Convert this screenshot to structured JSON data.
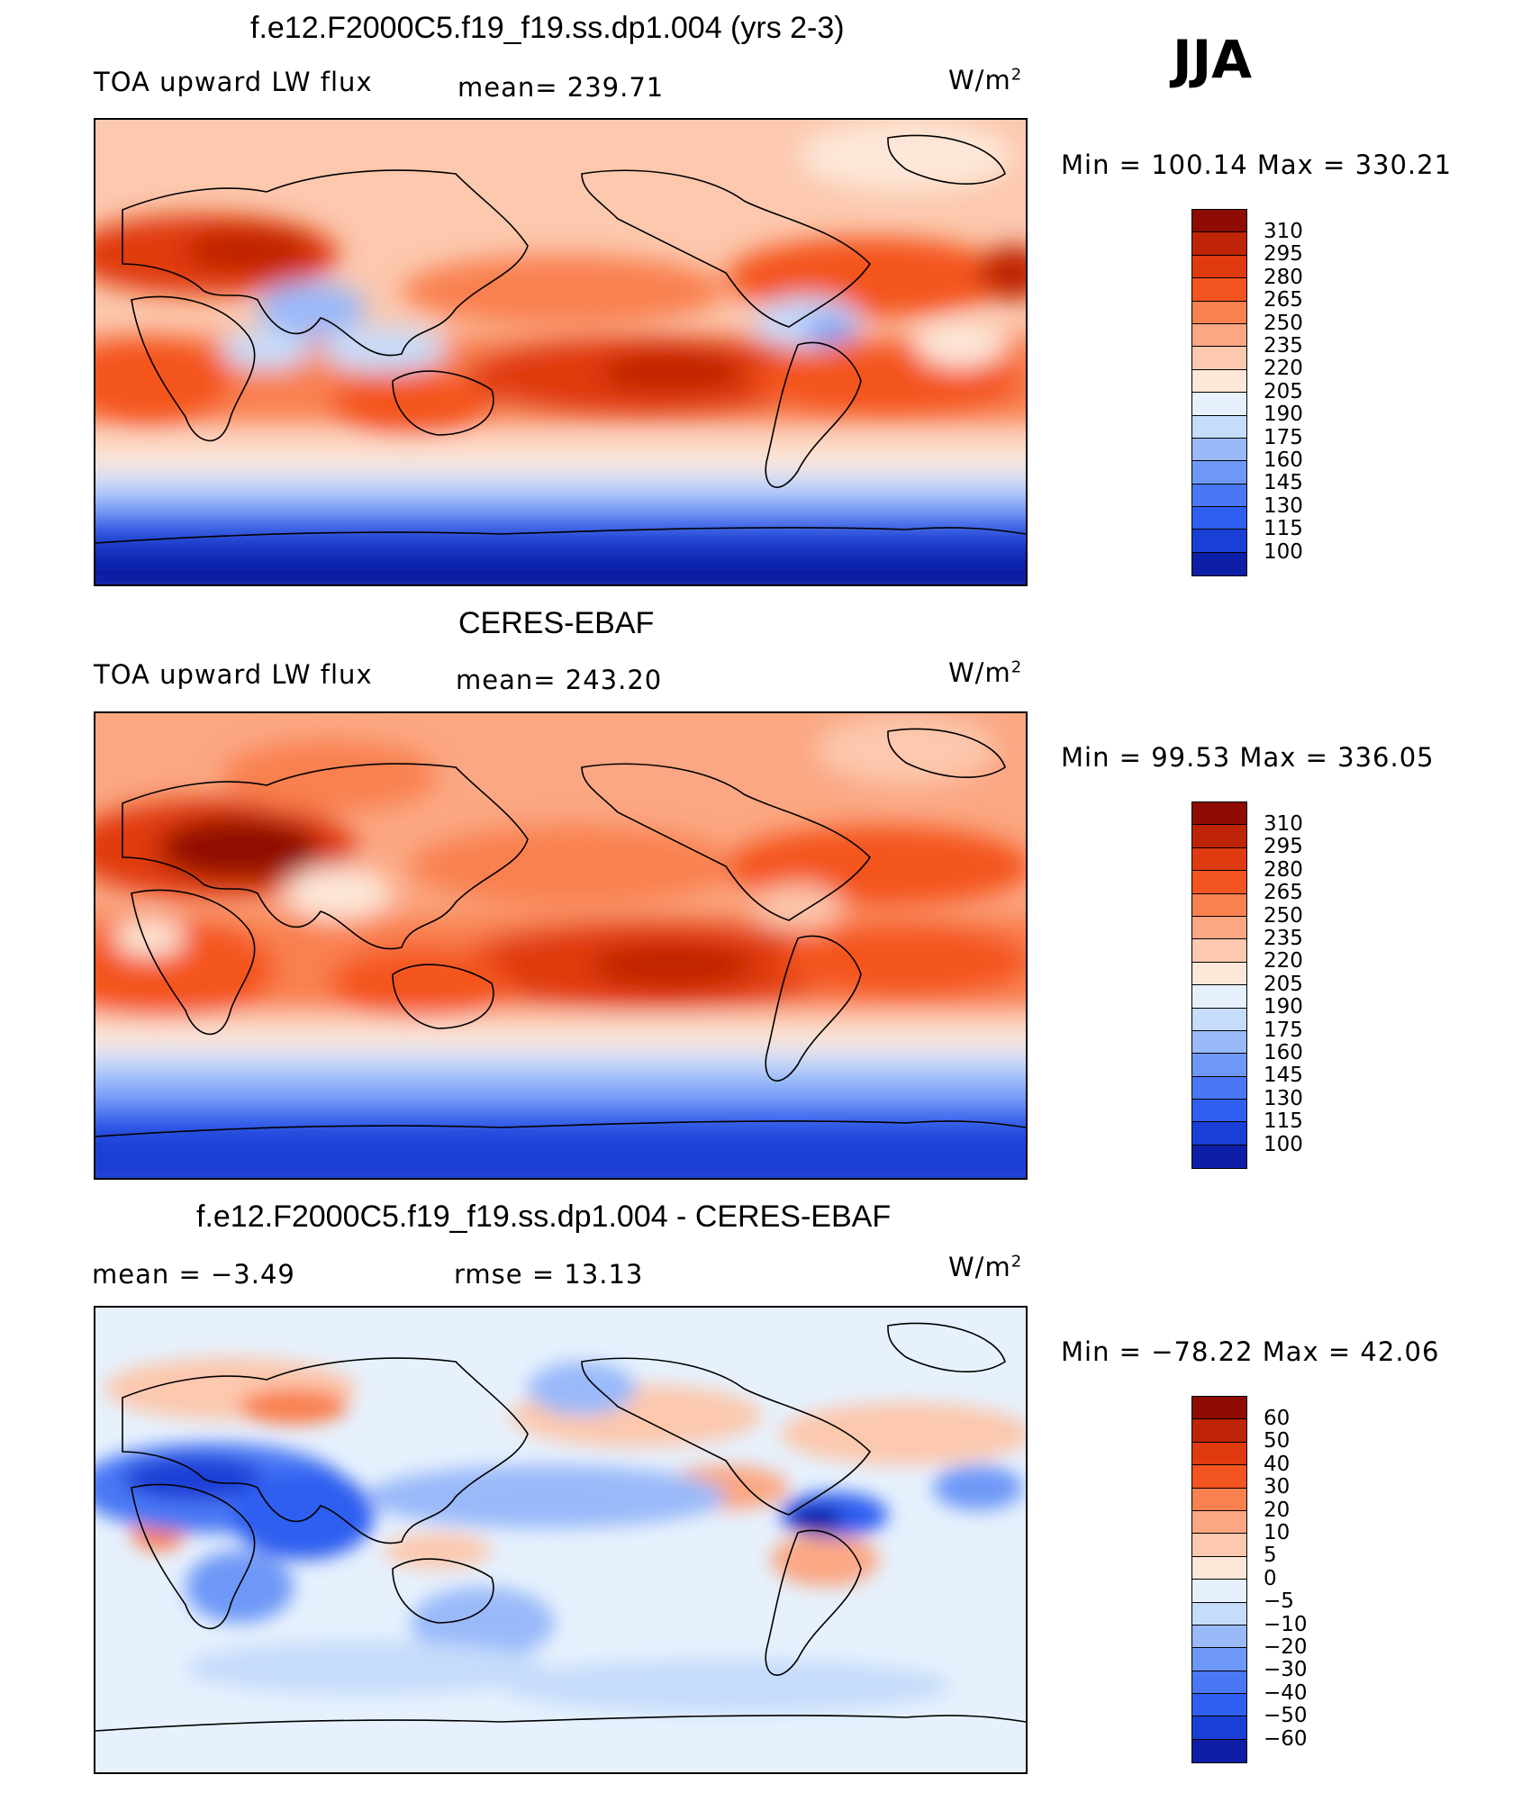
{
  "season": "JJA",
  "colors": {
    "abs_scale": [
      "#08067a",
      "#0c1fa6",
      "#1a3fd6",
      "#2e5ff0",
      "#4a78f5",
      "#6e98f7",
      "#9ab9f9",
      "#c6dcfb",
      "#e6f1fd",
      "#fde7d8",
      "#fcc8ae",
      "#fba783",
      "#f9804f",
      "#f4541f",
      "#e03a10",
      "#bf2406",
      "#8f0c04"
    ],
    "diff_scale": [
      "#08067a",
      "#0c1fa6",
      "#1a3fd6",
      "#2e5ff0",
      "#4a78f5",
      "#6e98f7",
      "#9ab9f9",
      "#c6dcfb",
      "#e6f1fd",
      "#fde7d8",
      "#fcc8ae",
      "#fba783",
      "#f9804f",
      "#f4541f",
      "#e03a10",
      "#bf2406",
      "#8f0c04"
    ]
  },
  "panels": [
    {
      "title": "f.e12.F2000C5.f19_f19.ss.dp1.004 (yrs 2-3)",
      "left_label": "TOA upward LW flux",
      "center_label": "mean=  239.71",
      "unit": "W/m",
      "unit_sup": "2",
      "minmax": "Min  =  100.14  Max  =  330.21",
      "colorbar_ticks": [
        "310",
        "295",
        "280",
        "265",
        "250",
        "235",
        "220",
        "205",
        "190",
        "175",
        "160",
        "145",
        "130",
        "115",
        "100"
      ]
    },
    {
      "title": "CERES-EBAF",
      "left_label": "TOA upward LW flux",
      "center_label": "mean=  243.20",
      "unit": "W/m",
      "unit_sup": "2",
      "minmax": "Min  =    99.53  Max  =  336.05",
      "colorbar_ticks": [
        "310",
        "295",
        "280",
        "265",
        "250",
        "235",
        "220",
        "205",
        "190",
        "175",
        "160",
        "145",
        "130",
        "115",
        "100"
      ]
    },
    {
      "title": "f.e12.F2000C5.f19_f19.ss.dp1.004 - CERES-EBAF",
      "left_label": "mean  =     −3.49",
      "center_label": "rmse  =     13.13",
      "unit": "W/m",
      "unit_sup": "2",
      "minmax": "Min  =  −78.22  Max  =    42.06",
      "colorbar_ticks": [
        "60",
        "50",
        "40",
        "30",
        "20",
        "10",
        "5",
        "0",
        "−5",
        "−10",
        "−20",
        "−30",
        "−40",
        "−50",
        "−60"
      ]
    }
  ],
  "chart_data": [
    {
      "type": "heatmap",
      "title": "f.e12.F2000C5.f19_f19.ss.dp1.004 (yrs 2-3)",
      "variable": "TOA upward LW flux",
      "units": "W/m2",
      "mean": 239.71,
      "min": 100.14,
      "max": 330.21,
      "levels": [
        100,
        115,
        130,
        145,
        160,
        175,
        190,
        205,
        220,
        235,
        250,
        265,
        280,
        295,
        310
      ]
    },
    {
      "type": "heatmap",
      "title": "CERES-EBAF",
      "variable": "TOA upward LW flux",
      "units": "W/m2",
      "mean": 243.2,
      "min": 99.53,
      "max": 336.05,
      "levels": [
        100,
        115,
        130,
        145,
        160,
        175,
        190,
        205,
        220,
        235,
        250,
        265,
        280,
        295,
        310
      ]
    },
    {
      "type": "heatmap",
      "title": "f.e12.F2000C5.f19_f19.ss.dp1.004 - CERES-EBAF",
      "units": "W/m2",
      "mean": -3.49,
      "rmse": 13.13,
      "min": -78.22,
      "max": 42.06,
      "levels": [
        -60,
        -50,
        -40,
        -30,
        -20,
        -10,
        -5,
        0,
        5,
        10,
        20,
        30,
        40,
        50,
        60
      ]
    }
  ]
}
